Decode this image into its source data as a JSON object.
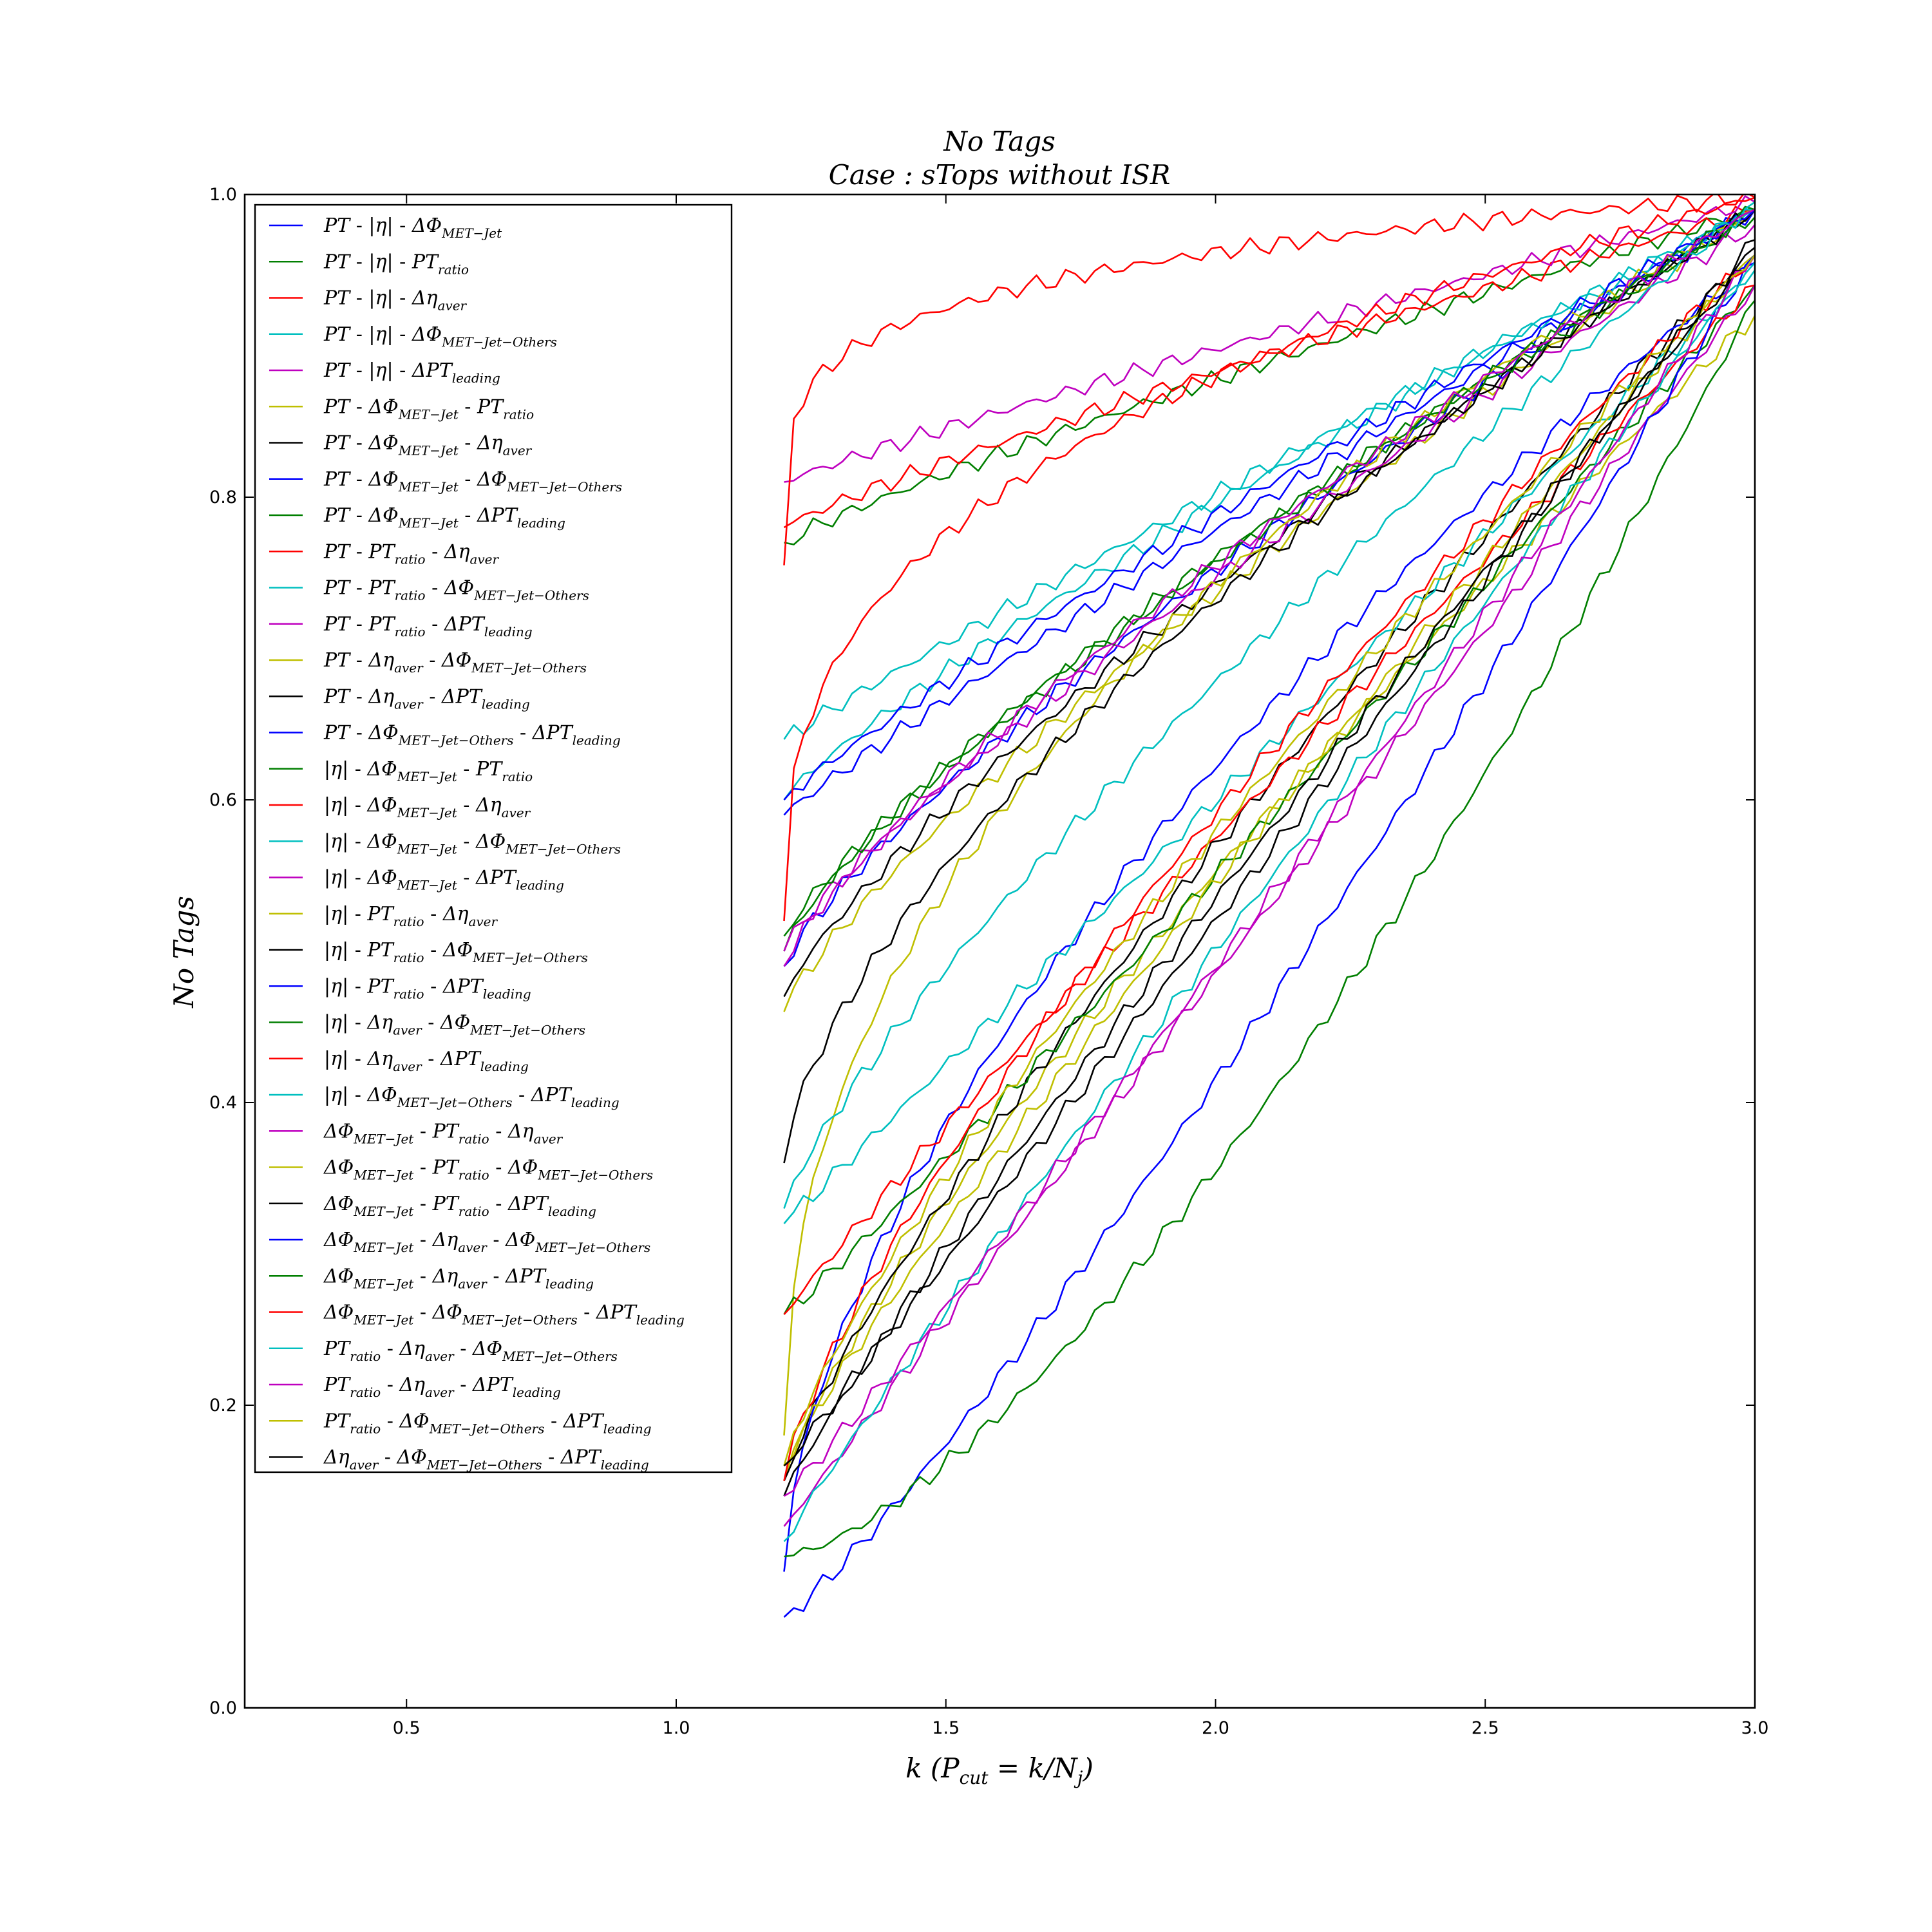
{
  "chart_data": {
    "type": "line",
    "title": "No Tags",
    "subtitle": "Case : sTops without ISR",
    "xlabel": "k (P_cut = k/N_j)",
    "ylabel": "No Tags",
    "xlim": [
      0.2,
      3.0
    ],
    "ylim": [
      0.0,
      1.0
    ],
    "xticks": [
      "0.5",
      "1.0",
      "1.5",
      "2.0",
      "2.5",
      "3.0"
    ],
    "yticks": [
      "0.0",
      "0.2",
      "0.4",
      "0.6",
      "0.8",
      "1.0"
    ],
    "grid": false,
    "legend_position": "upper-left",
    "colors": [
      "#0000ff",
      "#007f00",
      "#ff0000",
      "#00bfbf",
      "#bf00bf",
      "#bfbf00",
      "#000000"
    ],
    "x_start": 1.2,
    "x_end": 3.0,
    "series": [
      {
        "name": "PT - |η| - ΔΦ_MET-Jet",
        "y0": 0.59,
        "p": 0.93,
        "y3": 0.99
      },
      {
        "name": "PT - |η| - PT_ratio",
        "y0": 0.77,
        "p": 0.88,
        "y3": 0.99
      },
      {
        "name": "PT - |η| - Δη_aver",
        "y0": 0.78,
        "p": 0.88,
        "y3": 0.99
      },
      {
        "name": "PT - |η| - ΔΦ_MET-Jet-Others",
        "y0": 0.64,
        "p": 0.95,
        "y3": 0.99
      },
      {
        "name": "PT - |η| - ΔPT_leading",
        "y0": 0.81,
        "p": 0.92,
        "y3": 0.995
      },
      {
        "name": "PT - ΔΦ_MET-Jet - PT_ratio",
        "y0": 0.46,
        "p": 0.8,
        "y3": 0.99
      },
      {
        "name": "PT - ΔΦ_MET-Jet - Δη_aver",
        "y0": 0.47,
        "p": 0.8,
        "y3": 0.99
      },
      {
        "name": "PT - ΔΦ_MET-Jet - ΔΦ_MET-Jet-Others",
        "y0": 0.49,
        "p": 0.8,
        "y3": 0.99
      },
      {
        "name": "PT - ΔΦ_MET-Jet - ΔPT_leading",
        "y0": 0.5,
        "p": 0.77,
        "y3": 0.985
      },
      {
        "name": "PT - PT_ratio - Δη_aver",
        "y0": 0.755,
        "p": 0.2,
        "y3": 0.998
      },
      {
        "name": "PT - PT_ratio - ΔΦ_MET-Jet-Others",
        "y0": 0.6,
        "p": 0.85,
        "y3": 0.99
      },
      {
        "name": "PT - PT_ratio - ΔPT_leading",
        "y0": 0.5,
        "p": 0.82,
        "y3": 0.98
      },
      {
        "name": "PT - Δη_aver - ΔΦ_MET-Jet-Others",
        "y0": 0.18,
        "p": 0.45,
        "y3": 0.99
      },
      {
        "name": "PT - Δη_aver - ΔPT_leading",
        "y0": 0.36,
        "p": 0.65,
        "y3": 0.99
      },
      {
        "name": "PT - ΔΦ_MET-Jet-Others - ΔPT_leading",
        "y0": 0.6,
        "p": 0.9,
        "y3": 0.99
      },
      {
        "name": "|η| - ΔΦ_MET-Jet - PT_ratio",
        "y0": 0.51,
        "p": 0.82,
        "y3": 0.99
      },
      {
        "name": "|η| - ΔΦ_MET-Jet - Δη_aver",
        "y0": 0.52,
        "p": 0.35,
        "y3": 0.998
      },
      {
        "name": "|η| - ΔΦ_MET-Jet - ΔΦ_MET-Jet-Others",
        "y0": 0.33,
        "p": 0.8,
        "y3": 0.995
      },
      {
        "name": "|η| - ΔΦ_MET-Jet - ΔPT_leading",
        "y0": 0.49,
        "p": 0.78,
        "y3": 0.99
      },
      {
        "name": "|η| - PT_ratio - Δη_aver",
        "y0": 0.15,
        "p": 0.8,
        "y3": 0.92
      },
      {
        "name": "|η| - PT_ratio - ΔΦ_MET-Jet-Others",
        "y0": 0.15,
        "p": 0.82,
        "y3": 0.965
      },
      {
        "name": "|η| - PT_ratio - ΔPT_leading",
        "y0": 0.09,
        "p": 0.6,
        "y3": 0.955
      },
      {
        "name": "|η| - Δη_aver - ΔΦ_MET-Jet-Others",
        "y0": 0.26,
        "p": 1.05,
        "y3": 0.94
      },
      {
        "name": "|η| - Δη_aver - ΔPT_leading",
        "y0": 0.26,
        "p": 0.95,
        "y3": 0.94
      },
      {
        "name": "|η| - ΔΦ_MET-Jet-Others - ΔPT_leading",
        "y0": 0.32,
        "p": 1.0,
        "y3": 0.95
      },
      {
        "name": "ΔΦ_MET-Jet - PT_ratio - Δη_aver",
        "y0": 0.12,
        "p": 1.0,
        "y3": 0.94
      },
      {
        "name": "ΔΦ_MET-Jet - PT_ratio - ΔΦ_MET-Jet-Others",
        "y0": 0.16,
        "p": 0.9,
        "y3": 0.96
      },
      {
        "name": "ΔΦ_MET-Jet - PT_ratio - ΔPT_leading",
        "y0": 0.14,
        "p": 0.9,
        "y3": 0.96
      },
      {
        "name": "ΔΦ_MET-Jet - Δη_aver - ΔΦ_MET-Jet-Others",
        "y0": 0.06,
        "p": 1.15,
        "y3": 0.96
      },
      {
        "name": "ΔΦ_MET-Jet - Δη_aver - ΔPT_leading",
        "y0": 0.1,
        "p": 1.45,
        "y3": 0.93
      },
      {
        "name": "ΔΦ_MET-Jet - ΔΦ_MET-Jet-Others - ΔPT_leading",
        "y0": 0.15,
        "p": 0.75,
        "y3": 0.96
      },
      {
        "name": "PT_ratio - Δη_aver - ΔΦ_MET-Jet-Others",
        "y0": 0.11,
        "p": 0.95,
        "y3": 0.955
      },
      {
        "name": "PT_ratio - Δη_aver - ΔPT_leading",
        "y0": 0.14,
        "p": 1.05,
        "y3": 0.96
      },
      {
        "name": "PT_ratio - ΔΦ_MET-Jet-Others - ΔPT_leading",
        "y0": 0.16,
        "p": 0.8,
        "y3": 0.96
      },
      {
        "name": "Δη_aver - ΔΦ_MET-Jet-Others - ΔPT_leading",
        "y0": 0.16,
        "p": 1.0,
        "y3": 0.97
      }
    ],
    "legend_labels": [
      [
        [
          "PT",
          "i"
        ],
        [
          " - ",
          "n"
        ],
        [
          "|η|",
          "i"
        ],
        [
          " - ",
          "n"
        ],
        [
          "ΔΦ",
          "i"
        ],
        [
          "MET−Jet",
          "s"
        ]
      ],
      [
        [
          "PT",
          "i"
        ],
        [
          " - ",
          "n"
        ],
        [
          "|η|",
          "i"
        ],
        [
          " - ",
          "n"
        ],
        [
          "PT",
          "i"
        ],
        [
          "ratio",
          "s"
        ]
      ],
      [
        [
          "PT",
          "i"
        ],
        [
          " - ",
          "n"
        ],
        [
          "|η|",
          "i"
        ],
        [
          " - ",
          "n"
        ],
        [
          "Δη",
          "i"
        ],
        [
          "aver",
          "s"
        ]
      ],
      [
        [
          "PT",
          "i"
        ],
        [
          " - ",
          "n"
        ],
        [
          "|η|",
          "i"
        ],
        [
          " - ",
          "n"
        ],
        [
          "ΔΦ",
          "i"
        ],
        [
          "MET−Jet−Others",
          "s"
        ]
      ],
      [
        [
          "PT",
          "i"
        ],
        [
          " - ",
          "n"
        ],
        [
          "|η|",
          "i"
        ],
        [
          " - ",
          "n"
        ],
        [
          "ΔPT",
          "i"
        ],
        [
          "leading",
          "s"
        ]
      ],
      [
        [
          "PT",
          "i"
        ],
        [
          " - ",
          "n"
        ],
        [
          "ΔΦ",
          "i"
        ],
        [
          "MET−Jet",
          "s"
        ],
        [
          " - ",
          "n"
        ],
        [
          "PT",
          "i"
        ],
        [
          "ratio",
          "s"
        ]
      ],
      [
        [
          "PT",
          "i"
        ],
        [
          " - ",
          "n"
        ],
        [
          "ΔΦ",
          "i"
        ],
        [
          "MET−Jet",
          "s"
        ],
        [
          " - ",
          "n"
        ],
        [
          "Δη",
          "i"
        ],
        [
          "aver",
          "s"
        ]
      ],
      [
        [
          "PT",
          "i"
        ],
        [
          " - ",
          "n"
        ],
        [
          "ΔΦ",
          "i"
        ],
        [
          "MET−Jet",
          "s"
        ],
        [
          " - ",
          "n"
        ],
        [
          "ΔΦ",
          "i"
        ],
        [
          "MET−Jet−Others",
          "s"
        ]
      ],
      [
        [
          "PT",
          "i"
        ],
        [
          " - ",
          "n"
        ],
        [
          "ΔΦ",
          "i"
        ],
        [
          "MET−Jet",
          "s"
        ],
        [
          " - ",
          "n"
        ],
        [
          "ΔPT",
          "i"
        ],
        [
          "leading",
          "s"
        ]
      ],
      [
        [
          "PT",
          "i"
        ],
        [
          " - ",
          "n"
        ],
        [
          "PT",
          "i"
        ],
        [
          "ratio",
          "s"
        ],
        [
          " - ",
          "n"
        ],
        [
          "Δη",
          "i"
        ],
        [
          "aver",
          "s"
        ]
      ],
      [
        [
          "PT",
          "i"
        ],
        [
          " - ",
          "n"
        ],
        [
          "PT",
          "i"
        ],
        [
          "ratio",
          "s"
        ],
        [
          " - ",
          "n"
        ],
        [
          "ΔΦ",
          "i"
        ],
        [
          "MET−Jet−Others",
          "s"
        ]
      ],
      [
        [
          "PT",
          "i"
        ],
        [
          " - ",
          "n"
        ],
        [
          "PT",
          "i"
        ],
        [
          "ratio",
          "s"
        ],
        [
          " - ",
          "n"
        ],
        [
          "ΔPT",
          "i"
        ],
        [
          "leading",
          "s"
        ]
      ],
      [
        [
          "PT",
          "i"
        ],
        [
          " - ",
          "n"
        ],
        [
          "Δη",
          "i"
        ],
        [
          "aver",
          "s"
        ],
        [
          " - ",
          "n"
        ],
        [
          "ΔΦ",
          "i"
        ],
        [
          "MET−Jet−Others",
          "s"
        ]
      ],
      [
        [
          "PT",
          "i"
        ],
        [
          " - ",
          "n"
        ],
        [
          "Δη",
          "i"
        ],
        [
          "aver",
          "s"
        ],
        [
          " - ",
          "n"
        ],
        [
          "ΔPT",
          "i"
        ],
        [
          "leading",
          "s"
        ]
      ],
      [
        [
          "PT",
          "i"
        ],
        [
          " - ",
          "n"
        ],
        [
          "ΔΦ",
          "i"
        ],
        [
          "MET−Jet−Others",
          "s"
        ],
        [
          " - ",
          "n"
        ],
        [
          "ΔPT",
          "i"
        ],
        [
          "leading",
          "s"
        ]
      ],
      [
        [
          "|η|",
          "i"
        ],
        [
          " - ",
          "n"
        ],
        [
          "ΔΦ",
          "i"
        ],
        [
          "MET−Jet",
          "s"
        ],
        [
          " - ",
          "n"
        ],
        [
          "PT",
          "i"
        ],
        [
          "ratio",
          "s"
        ]
      ],
      [
        [
          "|η|",
          "i"
        ],
        [
          " - ",
          "n"
        ],
        [
          "ΔΦ",
          "i"
        ],
        [
          "MET−Jet",
          "s"
        ],
        [
          " - ",
          "n"
        ],
        [
          "Δη",
          "i"
        ],
        [
          "aver",
          "s"
        ]
      ],
      [
        [
          "|η|",
          "i"
        ],
        [
          " - ",
          "n"
        ],
        [
          "ΔΦ",
          "i"
        ],
        [
          "MET−Jet",
          "s"
        ],
        [
          " - ",
          "n"
        ],
        [
          "ΔΦ",
          "i"
        ],
        [
          "MET−Jet−Others",
          "s"
        ]
      ],
      [
        [
          "|η|",
          "i"
        ],
        [
          " - ",
          "n"
        ],
        [
          "ΔΦ",
          "i"
        ],
        [
          "MET−Jet",
          "s"
        ],
        [
          " - ",
          "n"
        ],
        [
          "ΔPT",
          "i"
        ],
        [
          "leading",
          "s"
        ]
      ],
      [
        [
          "|η|",
          "i"
        ],
        [
          " - ",
          "n"
        ],
        [
          "PT",
          "i"
        ],
        [
          "ratio",
          "s"
        ],
        [
          " - ",
          "n"
        ],
        [
          "Δη",
          "i"
        ],
        [
          "aver",
          "s"
        ]
      ],
      [
        [
          "|η|",
          "i"
        ],
        [
          " - ",
          "n"
        ],
        [
          "PT",
          "i"
        ],
        [
          "ratio",
          "s"
        ],
        [
          " - ",
          "n"
        ],
        [
          "ΔΦ",
          "i"
        ],
        [
          "MET−Jet−Others",
          "s"
        ]
      ],
      [
        [
          "|η|",
          "i"
        ],
        [
          " - ",
          "n"
        ],
        [
          "PT",
          "i"
        ],
        [
          "ratio",
          "s"
        ],
        [
          " - ",
          "n"
        ],
        [
          "ΔPT",
          "i"
        ],
        [
          "leading",
          "s"
        ]
      ],
      [
        [
          "|η|",
          "i"
        ],
        [
          " - ",
          "n"
        ],
        [
          "Δη",
          "i"
        ],
        [
          "aver",
          "s"
        ],
        [
          " - ",
          "n"
        ],
        [
          "ΔΦ",
          "i"
        ],
        [
          "MET−Jet−Others",
          "s"
        ]
      ],
      [
        [
          "|η|",
          "i"
        ],
        [
          " - ",
          "n"
        ],
        [
          "Δη",
          "i"
        ],
        [
          "aver",
          "s"
        ],
        [
          " - ",
          "n"
        ],
        [
          "ΔPT",
          "i"
        ],
        [
          "leading",
          "s"
        ]
      ],
      [
        [
          "|η|",
          "i"
        ],
        [
          " - ",
          "n"
        ],
        [
          "ΔΦ",
          "i"
        ],
        [
          "MET−Jet−Others",
          "s"
        ],
        [
          " - ",
          "n"
        ],
        [
          "ΔPT",
          "i"
        ],
        [
          "leading",
          "s"
        ]
      ],
      [
        [
          "ΔΦ",
          "i"
        ],
        [
          "MET−Jet",
          "s"
        ],
        [
          " - ",
          "n"
        ],
        [
          "PT",
          "i"
        ],
        [
          "ratio",
          "s"
        ],
        [
          " - ",
          "n"
        ],
        [
          "Δη",
          "i"
        ],
        [
          "aver",
          "s"
        ]
      ],
      [
        [
          "ΔΦ",
          "i"
        ],
        [
          "MET−Jet",
          "s"
        ],
        [
          " - ",
          "n"
        ],
        [
          "PT",
          "i"
        ],
        [
          "ratio",
          "s"
        ],
        [
          " - ",
          "n"
        ],
        [
          "ΔΦ",
          "i"
        ],
        [
          "MET−Jet−Others",
          "s"
        ]
      ],
      [
        [
          "ΔΦ",
          "i"
        ],
        [
          "MET−Jet",
          "s"
        ],
        [
          " - ",
          "n"
        ],
        [
          "PT",
          "i"
        ],
        [
          "ratio",
          "s"
        ],
        [
          " - ",
          "n"
        ],
        [
          "ΔPT",
          "i"
        ],
        [
          "leading",
          "s"
        ]
      ],
      [
        [
          "ΔΦ",
          "i"
        ],
        [
          "MET−Jet",
          "s"
        ],
        [
          " - ",
          "n"
        ],
        [
          "Δη",
          "i"
        ],
        [
          "aver",
          "s"
        ],
        [
          " - ",
          "n"
        ],
        [
          "ΔΦ",
          "i"
        ],
        [
          "MET−Jet−Others",
          "s"
        ]
      ],
      [
        [
          "ΔΦ",
          "i"
        ],
        [
          "MET−Jet",
          "s"
        ],
        [
          " - ",
          "n"
        ],
        [
          "Δη",
          "i"
        ],
        [
          "aver",
          "s"
        ],
        [
          " - ",
          "n"
        ],
        [
          "ΔPT",
          "i"
        ],
        [
          "leading",
          "s"
        ]
      ],
      [
        [
          "ΔΦ",
          "i"
        ],
        [
          "MET−Jet",
          "s"
        ],
        [
          " - ",
          "n"
        ],
        [
          "ΔΦ",
          "i"
        ],
        [
          "MET−Jet−Others",
          "s"
        ],
        [
          " - ",
          "n"
        ],
        [
          "ΔPT",
          "i"
        ],
        [
          "leading",
          "s"
        ]
      ],
      [
        [
          "PT",
          "i"
        ],
        [
          "ratio",
          "s"
        ],
        [
          " - ",
          "n"
        ],
        [
          "Δη",
          "i"
        ],
        [
          "aver",
          "s"
        ],
        [
          " - ",
          "n"
        ],
        [
          "ΔΦ",
          "i"
        ],
        [
          "MET−Jet−Others",
          "s"
        ]
      ],
      [
        [
          "PT",
          "i"
        ],
        [
          "ratio",
          "s"
        ],
        [
          " - ",
          "n"
        ],
        [
          "Δη",
          "i"
        ],
        [
          "aver",
          "s"
        ],
        [
          " - ",
          "n"
        ],
        [
          "ΔPT",
          "i"
        ],
        [
          "leading",
          "s"
        ]
      ],
      [
        [
          "PT",
          "i"
        ],
        [
          "ratio",
          "s"
        ],
        [
          " - ",
          "n"
        ],
        [
          "ΔΦ",
          "i"
        ],
        [
          "MET−Jet−Others",
          "s"
        ],
        [
          " - ",
          "n"
        ],
        [
          "ΔPT",
          "i"
        ],
        [
          "leading",
          "s"
        ]
      ],
      [
        [
          "Δη",
          "i"
        ],
        [
          "aver",
          "s"
        ],
        [
          " - ",
          "n"
        ],
        [
          "ΔΦ",
          "i"
        ],
        [
          "MET−Jet−Others",
          "s"
        ],
        [
          " - ",
          "n"
        ],
        [
          "ΔPT",
          "i"
        ],
        [
          "leading",
          "s"
        ]
      ]
    ]
  }
}
